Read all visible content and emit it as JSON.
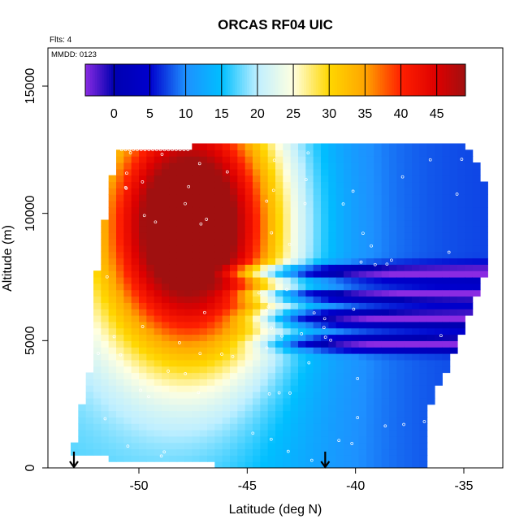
{
  "header": {
    "title": "ORCAS RF04 UIC",
    "flights": "Flts: 4",
    "mmdd": "MMDD: 0123"
  },
  "chart_data": {
    "type": "heatmap",
    "title": "ORCAS RF04 UIC",
    "xlabel": "Latitude (deg N)",
    "ylabel": "Altitude (m)",
    "xlim": [
      -54.2,
      -33.2
    ],
    "ylim": [
      0,
      16500
    ],
    "x_ticks": [
      -50,
      -45,
      -40,
      -35
    ],
    "y_ticks": [
      0,
      5000,
      10000,
      15000
    ],
    "colorbar": {
      "range": [
        -4,
        49
      ],
      "ticks": [
        0,
        5,
        10,
        15,
        20,
        25,
        30,
        35,
        40,
        45
      ],
      "stops": [
        {
          "v": -4,
          "color": "#8a2be2"
        },
        {
          "v": 0,
          "color": "#0000b0"
        },
        {
          "v": 5,
          "color": "#0000cd"
        },
        {
          "v": 10,
          "color": "#1e90ff"
        },
        {
          "v": 15,
          "color": "#00bfff"
        },
        {
          "v": 20,
          "color": "#bfefff"
        },
        {
          "v": 25,
          "color": "#ffffe0"
        },
        {
          "v": 30,
          "color": "#ffd700"
        },
        {
          "v": 35,
          "color": "#ffa500"
        },
        {
          "v": 40,
          "color": "#ff2000"
        },
        {
          "v": 45,
          "color": "#dd0000"
        },
        {
          "v": 49,
          "color": "#a01010"
        }
      ]
    },
    "domain_outline": [
      [
        -53.0,
        800
      ],
      [
        -52.8,
        2200
      ],
      [
        -52.3,
        3400
      ],
      [
        -52.0,
        6500
      ],
      [
        -51.9,
        8000
      ],
      [
        -51.6,
        9500
      ],
      [
        -51.3,
        11200
      ],
      [
        -50.9,
        12500
      ],
      [
        -47.0,
        12650
      ],
      [
        -42.5,
        12700
      ],
      [
        -38.0,
        12750
      ],
      [
        -35.0,
        12850
      ],
      [
        -34.6,
        12300
      ],
      [
        -34.0,
        11000
      ],
      [
        -33.8,
        10000
      ],
      [
        -33.9,
        8000
      ],
      [
        -34.3,
        7000
      ],
      [
        -34.8,
        6000
      ],
      [
        -35.4,
        4500
      ],
      [
        -36.0,
        3600
      ],
      [
        -36.6,
        2400
      ],
      [
        -36.8,
        1200
      ],
      [
        -36.5,
        0
      ],
      [
        -46.5,
        0
      ],
      [
        -46.5,
        300
      ],
      [
        -51.0,
        300
      ],
      [
        -53.0,
        600
      ]
    ],
    "field_model": {
      "warm_core": {
        "lat": -47.2,
        "alt": 9500,
        "value": 47,
        "lat_scale": 4.5,
        "alt_scale": 5200
      },
      "cold_gradient": {
        "center_lat": -42.0,
        "width": 2.5,
        "north_value": 7
      },
      "background_value": 17,
      "cold_layers": [
        {
          "alt": 7700,
          "thickness": 300,
          "lat_start": -45.5
        },
        {
          "alt": 6800,
          "thickness": 250,
          "lat_start": -44.5
        },
        {
          "alt": 5900,
          "thickness": 350,
          "lat_start": -44.0
        },
        {
          "alt": 4900,
          "thickness": 300,
          "lat_start": -43.5
        }
      ]
    },
    "flight_track_markers": [
      {
        "lat": -53.0,
        "alt": 0
      },
      {
        "lat": -41.4,
        "alt": 0
      }
    ]
  }
}
